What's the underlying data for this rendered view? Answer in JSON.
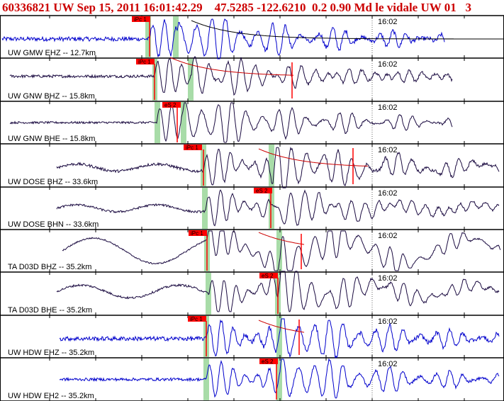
{
  "header": {
    "event_id": "60336821",
    "network": "UW",
    "date": "Sep 15, 2011",
    "time": "16:01:42.29",
    "lat": "47.5285",
    "lon": "-122.6210",
    "depth": "0.2",
    "magnitude": "0.90 Md",
    "location": "le vidale",
    "source": "UW 01",
    "extra": "3"
  },
  "minute_label": "16:02",
  "colors": {
    "title": "#cc0000",
    "vertical_blue": "#0000cc",
    "dark_trace": "#1a0a40",
    "pick_box": "#ff0000",
    "pick_window": "#a8dca8",
    "coda_curve": "#cc0000",
    "grid": "#000000"
  },
  "traces": [
    {
      "label": "UW GMW EHZ -- 12.7km",
      "picks": [
        {
          "text": "iPc 1"
        }
      ]
    },
    {
      "label": "UW GNW BHZ -- 15.8km",
      "picks": [
        {
          "text": "iPc 1"
        }
      ]
    },
    {
      "label": "UW GNW BHE -- 15.8km",
      "picks": [
        {
          "text": "eS 2"
        }
      ]
    },
    {
      "label": "UW DOSE BHZ -- 33.6km",
      "picks": [
        {
          "text": "iPc 1"
        }
      ]
    },
    {
      "label": "UW DOSE BHN -- 33.6km",
      "picks": [
        {
          "text": "eS 2"
        }
      ]
    },
    {
      "label": "TA D03D BHZ -- 35.2km",
      "picks": [
        {
          "text": "iPc 1"
        }
      ]
    },
    {
      "label": "TA D03D BHE -- 35.2km",
      "picks": [
        {
          "text": "eS 2"
        }
      ]
    },
    {
      "label": "UW HDW EHZ -- 35.2km",
      "picks": [
        {
          "text": "iPc 1"
        }
      ]
    },
    {
      "label": "UW HDW EH2 -- 35.2km",
      "picks": [
        {
          "text": "eS 2"
        }
      ]
    }
  ]
}
